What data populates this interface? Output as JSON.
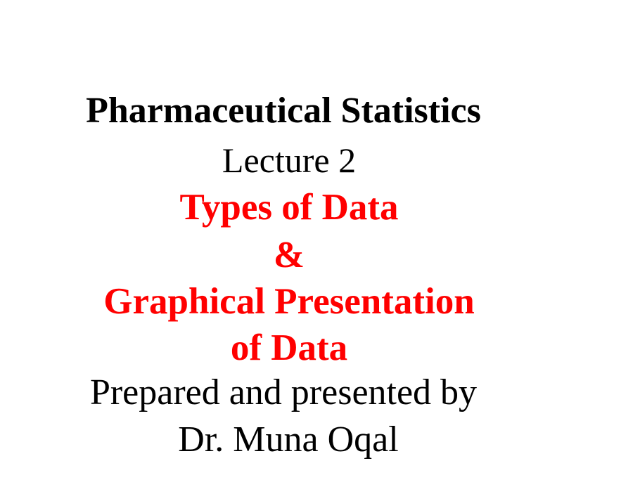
{
  "slide": {
    "title": "Pharmaceutical Statistics",
    "lecture": "Lecture 2",
    "topic_line1": "Types of Data",
    "topic_line2": "&",
    "topic_line3": "Graphical Presentation",
    "topic_line4": "of Data",
    "presenter_line1": "Prepared and presented by",
    "presenter_line2": "Dr. Muna Oqal"
  },
  "colors": {
    "accent": "#ff0000",
    "text": "#000000",
    "background": "#ffffff"
  }
}
